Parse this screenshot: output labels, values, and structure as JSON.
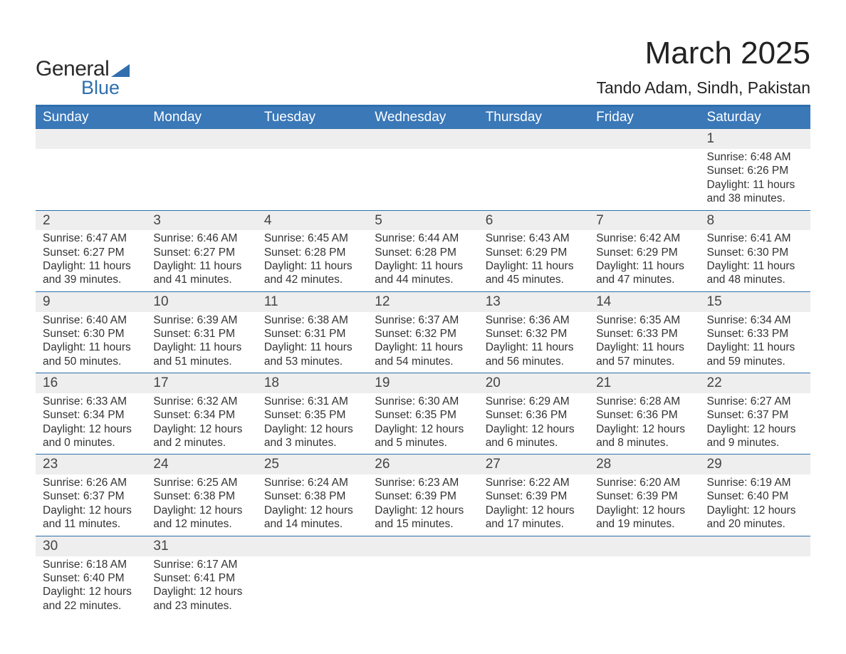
{
  "logo": {
    "word1": "General",
    "word2": "Blue"
  },
  "header": {
    "title": "March 2025",
    "location": "Tando Adam, Sindh, Pakistan",
    "title_fontsize": 44,
    "location_fontsize": 23,
    "title_color": "#222222",
    "accent_color": "#2f6fae"
  },
  "calendar": {
    "type": "table",
    "columns": [
      "Sunday",
      "Monday",
      "Tuesday",
      "Wednesday",
      "Thursday",
      "Friday",
      "Saturday"
    ],
    "header_bg": "#3a78b8",
    "header_text_color": "#ffffff",
    "row_separator_color": "#2f6fae",
    "daynum_bg": "#eeeeee",
    "body_text_color": "#333333",
    "font_size_body": 15.5,
    "font_size_daynum": 19,
    "weeks": [
      [
        null,
        null,
        null,
        null,
        null,
        null,
        {
          "n": "1",
          "sunrise": "Sunrise: 6:48 AM",
          "sunset": "Sunset: 6:26 PM",
          "day1": "Daylight: 11 hours",
          "day2": "and 38 minutes."
        }
      ],
      [
        {
          "n": "2",
          "sunrise": "Sunrise: 6:47 AM",
          "sunset": "Sunset: 6:27 PM",
          "day1": "Daylight: 11 hours",
          "day2": "and 39 minutes."
        },
        {
          "n": "3",
          "sunrise": "Sunrise: 6:46 AM",
          "sunset": "Sunset: 6:27 PM",
          "day1": "Daylight: 11 hours",
          "day2": "and 41 minutes."
        },
        {
          "n": "4",
          "sunrise": "Sunrise: 6:45 AM",
          "sunset": "Sunset: 6:28 PM",
          "day1": "Daylight: 11 hours",
          "day2": "and 42 minutes."
        },
        {
          "n": "5",
          "sunrise": "Sunrise: 6:44 AM",
          "sunset": "Sunset: 6:28 PM",
          "day1": "Daylight: 11 hours",
          "day2": "and 44 minutes."
        },
        {
          "n": "6",
          "sunrise": "Sunrise: 6:43 AM",
          "sunset": "Sunset: 6:29 PM",
          "day1": "Daylight: 11 hours",
          "day2": "and 45 minutes."
        },
        {
          "n": "7",
          "sunrise": "Sunrise: 6:42 AM",
          "sunset": "Sunset: 6:29 PM",
          "day1": "Daylight: 11 hours",
          "day2": "and 47 minutes."
        },
        {
          "n": "8",
          "sunrise": "Sunrise: 6:41 AM",
          "sunset": "Sunset: 6:30 PM",
          "day1": "Daylight: 11 hours",
          "day2": "and 48 minutes."
        }
      ],
      [
        {
          "n": "9",
          "sunrise": "Sunrise: 6:40 AM",
          "sunset": "Sunset: 6:30 PM",
          "day1": "Daylight: 11 hours",
          "day2": "and 50 minutes."
        },
        {
          "n": "10",
          "sunrise": "Sunrise: 6:39 AM",
          "sunset": "Sunset: 6:31 PM",
          "day1": "Daylight: 11 hours",
          "day2": "and 51 minutes."
        },
        {
          "n": "11",
          "sunrise": "Sunrise: 6:38 AM",
          "sunset": "Sunset: 6:31 PM",
          "day1": "Daylight: 11 hours",
          "day2": "and 53 minutes."
        },
        {
          "n": "12",
          "sunrise": "Sunrise: 6:37 AM",
          "sunset": "Sunset: 6:32 PM",
          "day1": "Daylight: 11 hours",
          "day2": "and 54 minutes."
        },
        {
          "n": "13",
          "sunrise": "Sunrise: 6:36 AM",
          "sunset": "Sunset: 6:32 PM",
          "day1": "Daylight: 11 hours",
          "day2": "and 56 minutes."
        },
        {
          "n": "14",
          "sunrise": "Sunrise: 6:35 AM",
          "sunset": "Sunset: 6:33 PM",
          "day1": "Daylight: 11 hours",
          "day2": "and 57 minutes."
        },
        {
          "n": "15",
          "sunrise": "Sunrise: 6:34 AM",
          "sunset": "Sunset: 6:33 PM",
          "day1": "Daylight: 11 hours",
          "day2": "and 59 minutes."
        }
      ],
      [
        {
          "n": "16",
          "sunrise": "Sunrise: 6:33 AM",
          "sunset": "Sunset: 6:34 PM",
          "day1": "Daylight: 12 hours",
          "day2": "and 0 minutes."
        },
        {
          "n": "17",
          "sunrise": "Sunrise: 6:32 AM",
          "sunset": "Sunset: 6:34 PM",
          "day1": "Daylight: 12 hours",
          "day2": "and 2 minutes."
        },
        {
          "n": "18",
          "sunrise": "Sunrise: 6:31 AM",
          "sunset": "Sunset: 6:35 PM",
          "day1": "Daylight: 12 hours",
          "day2": "and 3 minutes."
        },
        {
          "n": "19",
          "sunrise": "Sunrise: 6:30 AM",
          "sunset": "Sunset: 6:35 PM",
          "day1": "Daylight: 12 hours",
          "day2": "and 5 minutes."
        },
        {
          "n": "20",
          "sunrise": "Sunrise: 6:29 AM",
          "sunset": "Sunset: 6:36 PM",
          "day1": "Daylight: 12 hours",
          "day2": "and 6 minutes."
        },
        {
          "n": "21",
          "sunrise": "Sunrise: 6:28 AM",
          "sunset": "Sunset: 6:36 PM",
          "day1": "Daylight: 12 hours",
          "day2": "and 8 minutes."
        },
        {
          "n": "22",
          "sunrise": "Sunrise: 6:27 AM",
          "sunset": "Sunset: 6:37 PM",
          "day1": "Daylight: 12 hours",
          "day2": "and 9 minutes."
        }
      ],
      [
        {
          "n": "23",
          "sunrise": "Sunrise: 6:26 AM",
          "sunset": "Sunset: 6:37 PM",
          "day1": "Daylight: 12 hours",
          "day2": "and 11 minutes."
        },
        {
          "n": "24",
          "sunrise": "Sunrise: 6:25 AM",
          "sunset": "Sunset: 6:38 PM",
          "day1": "Daylight: 12 hours",
          "day2": "and 12 minutes."
        },
        {
          "n": "25",
          "sunrise": "Sunrise: 6:24 AM",
          "sunset": "Sunset: 6:38 PM",
          "day1": "Daylight: 12 hours",
          "day2": "and 14 minutes."
        },
        {
          "n": "26",
          "sunrise": "Sunrise: 6:23 AM",
          "sunset": "Sunset: 6:39 PM",
          "day1": "Daylight: 12 hours",
          "day2": "and 15 minutes."
        },
        {
          "n": "27",
          "sunrise": "Sunrise: 6:22 AM",
          "sunset": "Sunset: 6:39 PM",
          "day1": "Daylight: 12 hours",
          "day2": "and 17 minutes."
        },
        {
          "n": "28",
          "sunrise": "Sunrise: 6:20 AM",
          "sunset": "Sunset: 6:39 PM",
          "day1": "Daylight: 12 hours",
          "day2": "and 19 minutes."
        },
        {
          "n": "29",
          "sunrise": "Sunrise: 6:19 AM",
          "sunset": "Sunset: 6:40 PM",
          "day1": "Daylight: 12 hours",
          "day2": "and 20 minutes."
        }
      ],
      [
        {
          "n": "30",
          "sunrise": "Sunrise: 6:18 AM",
          "sunset": "Sunset: 6:40 PM",
          "day1": "Daylight: 12 hours",
          "day2": "and 22 minutes."
        },
        {
          "n": "31",
          "sunrise": "Sunrise: 6:17 AM",
          "sunset": "Sunset: 6:41 PM",
          "day1": "Daylight: 12 hours",
          "day2": "and 23 minutes."
        },
        null,
        null,
        null,
        null,
        null
      ]
    ]
  }
}
